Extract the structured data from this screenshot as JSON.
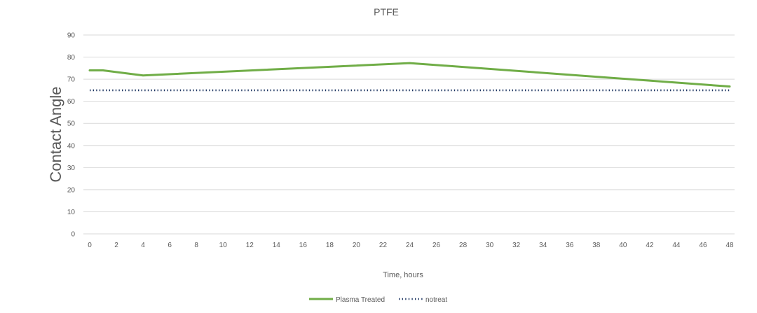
{
  "chart_data": {
    "type": "line",
    "title": "PTFE",
    "xlabel": "Time, hours",
    "ylabel": "Contact Angle",
    "xlim": [
      0,
      48
    ],
    "ylim": [
      0,
      90
    ],
    "x_ticks": [
      0,
      2,
      4,
      6,
      8,
      10,
      12,
      14,
      16,
      18,
      20,
      22,
      24,
      26,
      28,
      30,
      32,
      34,
      36,
      38,
      40,
      42,
      44,
      46,
      48
    ],
    "y_ticks": [
      0,
      10,
      20,
      30,
      40,
      50,
      60,
      70,
      80,
      90
    ],
    "grid": true,
    "legend_position": "bottom",
    "series": [
      {
        "name": "Plasma Treated",
        "color": "#70AD47",
        "style": "solid",
        "x": [
          0,
          1,
          4,
          24,
          48
        ],
        "values": [
          74,
          74,
          71.7,
          77.3,
          66.7
        ]
      },
      {
        "name": "notreat",
        "color": "#203864",
        "style": "dotted",
        "x": [
          0,
          48
        ],
        "values": [
          65,
          65
        ]
      }
    ]
  }
}
